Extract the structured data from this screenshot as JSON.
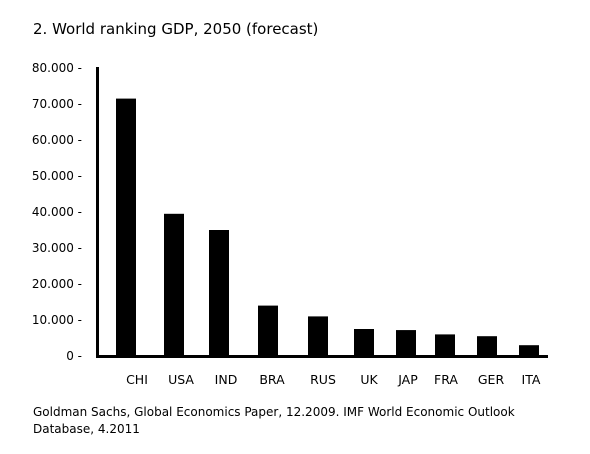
{
  "chart_data": {
    "type": "bar",
    "title": "2. World ranking GDP, 2050 (forecast)",
    "categories": [
      "CHI",
      "USA",
      "IND",
      "BRA",
      "RUS",
      "UK",
      "JAP",
      "FRA",
      "GER",
      "ITA"
    ],
    "values": [
      71500,
      39500,
      35000,
      14000,
      11000,
      7500,
      7200,
      6000,
      5500,
      3000
    ],
    "ylim": [
      0,
      80000
    ],
    "yticks": [
      0,
      10000,
      20000,
      30000,
      40000,
      50000,
      60000,
      70000,
      80000
    ],
    "ytick_labels": [
      "0 -",
      "10.000 -",
      "20.000 -",
      "30.000 -",
      "40.000 -",
      "50.000 -",
      "60.000 -",
      "70.000 -",
      "80.000 -"
    ],
    "xlabel": "",
    "ylabel": "",
    "bar_color": "#000000",
    "grid": false,
    "legend": "none"
  },
  "source_note": "Goldman Sachs, Global Economics Paper, 12.2009. IMF World Economic Outlook Database, 4.2011"
}
